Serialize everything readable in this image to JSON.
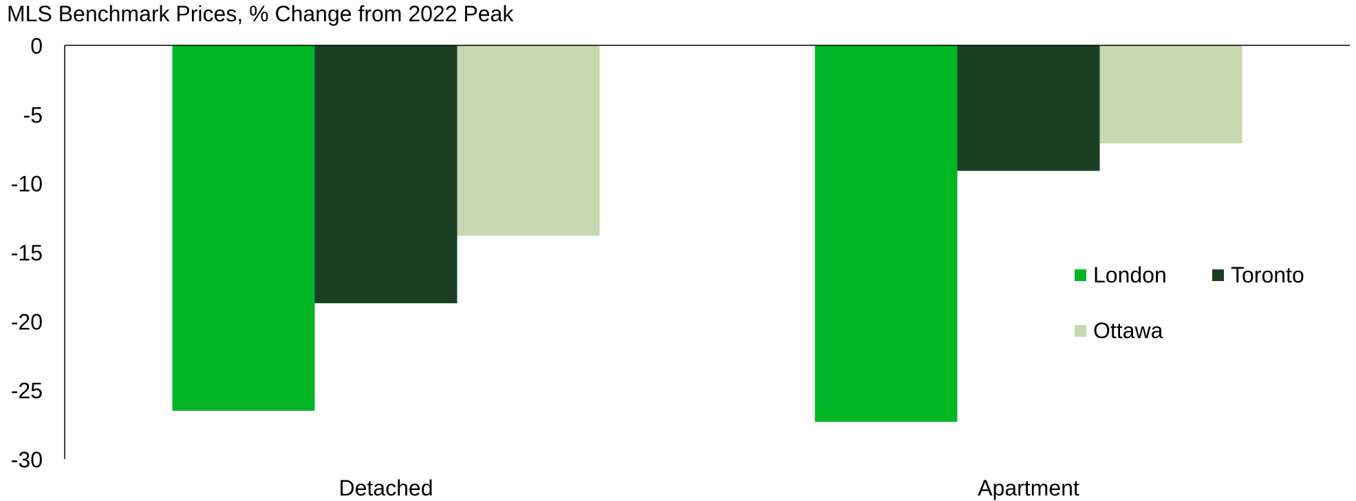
{
  "chart_data": {
    "type": "bar",
    "title": "MLS Benchmark Prices, % Change from 2022 Peak",
    "xlabel": "",
    "ylabel": "",
    "categories": [
      "Detached",
      "Apartment"
    ],
    "series": [
      {
        "name": "London",
        "values": [
          -26.5,
          -27.3
        ],
        "color": "#00b624"
      },
      {
        "name": "Toronto",
        "values": [
          -18.7,
          -9.1
        ],
        "color": "#1a3f24"
      },
      {
        "name": "Ottawa",
        "values": [
          -13.8,
          -7.1
        ],
        "color": "#c6d8ae"
      }
    ],
    "ylim": [
      -30,
      0
    ],
    "yticks": [
      "0",
      "-5",
      "-10",
      "-15",
      "-20",
      "-25",
      "-30"
    ],
    "grid": false,
    "legend_position": "right"
  }
}
